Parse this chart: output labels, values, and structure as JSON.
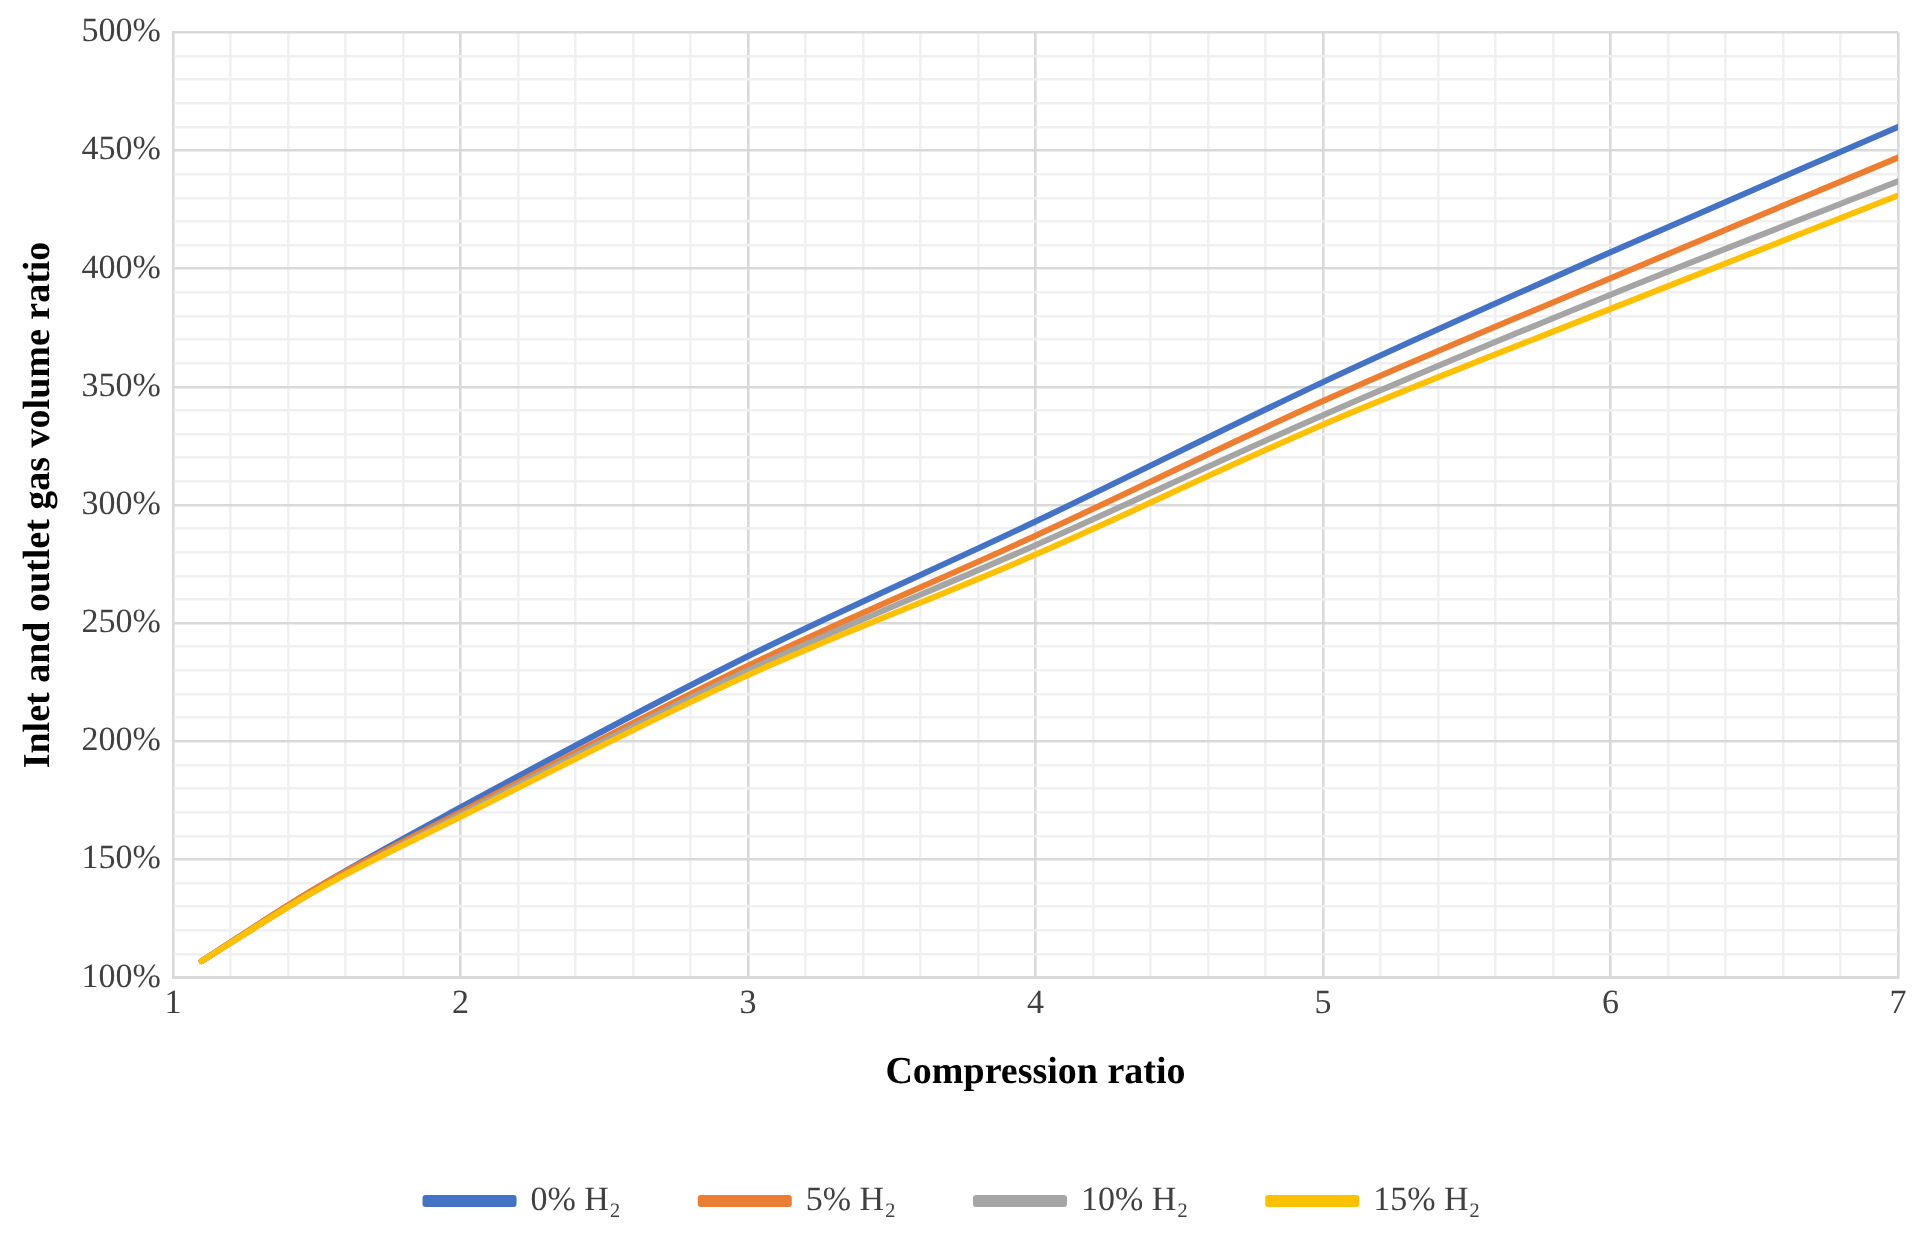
{
  "chart_data": {
    "type": "line",
    "xlabel": "Compression ratio",
    "ylabel": "Inlet and outlet gas volume ratio",
    "x": [
      1.1,
      1.5,
      2,
      3,
      4,
      5,
      6,
      7
    ],
    "series": [
      {
        "name": "0% H₂",
        "color": "#4472c4",
        "values": [
          107,
          138,
          172,
          236,
          293,
          352,
          407,
          460
        ]
      },
      {
        "name": "5% H₂",
        "color": "#ed7d31",
        "values": [
          107,
          138,
          170,
          232,
          287,
          344,
          396,
          447
        ]
      },
      {
        "name": "10% H₂",
        "color": "#a5a5a5",
        "values": [
          107,
          137,
          169,
          230,
          283,
          338,
          389,
          437
        ]
      },
      {
        "name": "15% H₂",
        "color": "#ffc000",
        "values": [
          107,
          137,
          168,
          228,
          279,
          334,
          383,
          431
        ]
      }
    ],
    "xlim": [
      1,
      7
    ],
    "xticks": [
      1,
      {
        "value": 1.2,
        "label": null
      },
      {
        "value": 1.4,
        "label": null
      },
      {
        "value": 1.6,
        "label": null
      },
      {
        "value": 1.8,
        "label": null
      },
      2,
      {
        "value": 2.2,
        "label": null
      },
      {
        "value": 2.4,
        "label": null
      },
      {
        "value": 2.6,
        "label": null
      },
      {
        "value": 2.8,
        "label": null
      },
      3,
      {
        "value": 3.2,
        "label": null
      },
      {
        "value": 3.4,
        "label": null
      },
      {
        "value": 3.6,
        "label": null
      },
      {
        "value": 3.8,
        "label": null
      },
      4,
      {
        "value": 4.2,
        "label": null
      },
      {
        "value": 4.4,
        "label": null
      },
      {
        "value": 4.6,
        "label": null
      },
      {
        "value": 4.8,
        "label": null
      },
      5,
      {
        "value": 5.2,
        "label": null
      },
      {
        "value": 5.4,
        "label": null
      },
      {
        "value": 5.6,
        "label": null
      },
      {
        "value": 5.8,
        "label": null
      },
      6,
      {
        "value": 6.2,
        "label": null
      },
      {
        "value": 6.4,
        "label": null
      },
      {
        "value": 6.6,
        "label": null
      },
      {
        "value": 6.8,
        "label": null
      },
      7
    ],
    "ylim": [
      100,
      500
    ],
    "yticks": [
      {
        "value": 100,
        "label": "100%"
      },
      {
        "value": 110,
        "label": null
      },
      {
        "value": 120,
        "label": null
      },
      {
        "value": 130,
        "label": null
      },
      {
        "value": 140,
        "label": null
      },
      {
        "value": 150,
        "label": "150%"
      },
      {
        "value": 160,
        "label": null
      },
      {
        "value": 170,
        "label": null
      },
      {
        "value": 180,
        "label": null
      },
      {
        "value": 190,
        "label": null
      },
      {
        "value": 200,
        "label": "200%"
      },
      {
        "value": 210,
        "label": null
      },
      {
        "value": 220,
        "label": null
      },
      {
        "value": 230,
        "label": null
      },
      {
        "value": 240,
        "label": null
      },
      {
        "value": 250,
        "label": "250%"
      },
      {
        "value": 260,
        "label": null
      },
      {
        "value": 270,
        "label": null
      },
      {
        "value": 280,
        "label": null
      },
      {
        "value": 290,
        "label": null
      },
      {
        "value": 300,
        "label": "300%"
      },
      {
        "value": 310,
        "label": null
      },
      {
        "value": 320,
        "label": null
      },
      {
        "value": 330,
        "label": null
      },
      {
        "value": 340,
        "label": null
      },
      {
        "value": 350,
        "label": "350%"
      },
      {
        "value": 360,
        "label": null
      },
      {
        "value": 370,
        "label": null
      },
      {
        "value": 380,
        "label": null
      },
      {
        "value": 390,
        "label": null
      },
      {
        "value": 400,
        "label": "400%"
      },
      {
        "value": 410,
        "label": null
      },
      {
        "value": 420,
        "label": null
      },
      {
        "value": 430,
        "label": null
      },
      {
        "value": 440,
        "label": null
      },
      {
        "value": 450,
        "label": "450%"
      },
      {
        "value": 460,
        "label": null
      },
      {
        "value": 470,
        "label": null
      },
      {
        "value": 480,
        "label": null
      },
      {
        "value": 490,
        "label": null
      },
      {
        "value": 500,
        "label": "500%"
      }
    ],
    "grid": true,
    "legend": "bottom",
    "marker": "none",
    "line_style": "solid"
  }
}
